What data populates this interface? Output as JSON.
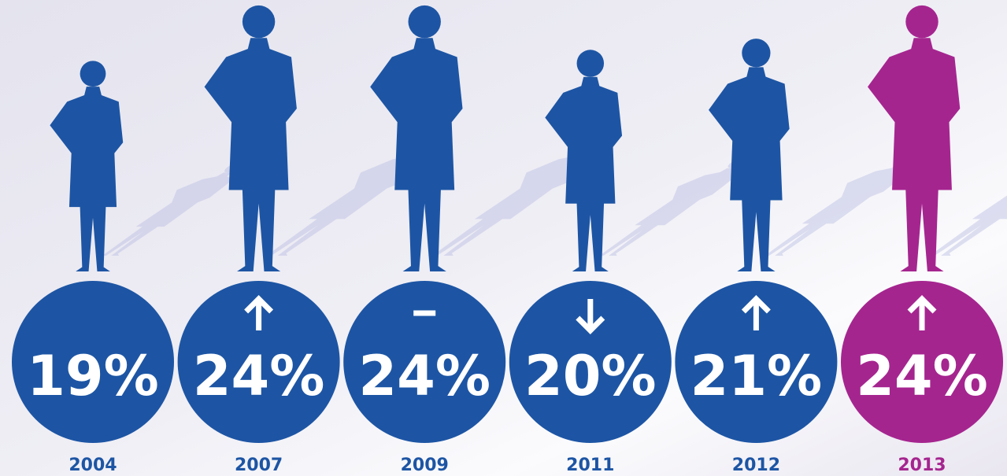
{
  "chart_data": {
    "type": "pictograph",
    "categories": [
      "2004",
      "2007",
      "2009",
      "2011",
      "2012",
      "2013"
    ],
    "values": [
      19,
      24,
      24,
      20,
      21,
      24
    ],
    "value_labels": [
      "19%",
      "24%",
      "24%",
      "20%",
      "21%",
      "24%"
    ],
    "colors": [
      "#1d55a4",
      "#1d55a4",
      "#1d55a4",
      "#1d55a4",
      "#1d55a4",
      "#a5258f"
    ]
  }
}
